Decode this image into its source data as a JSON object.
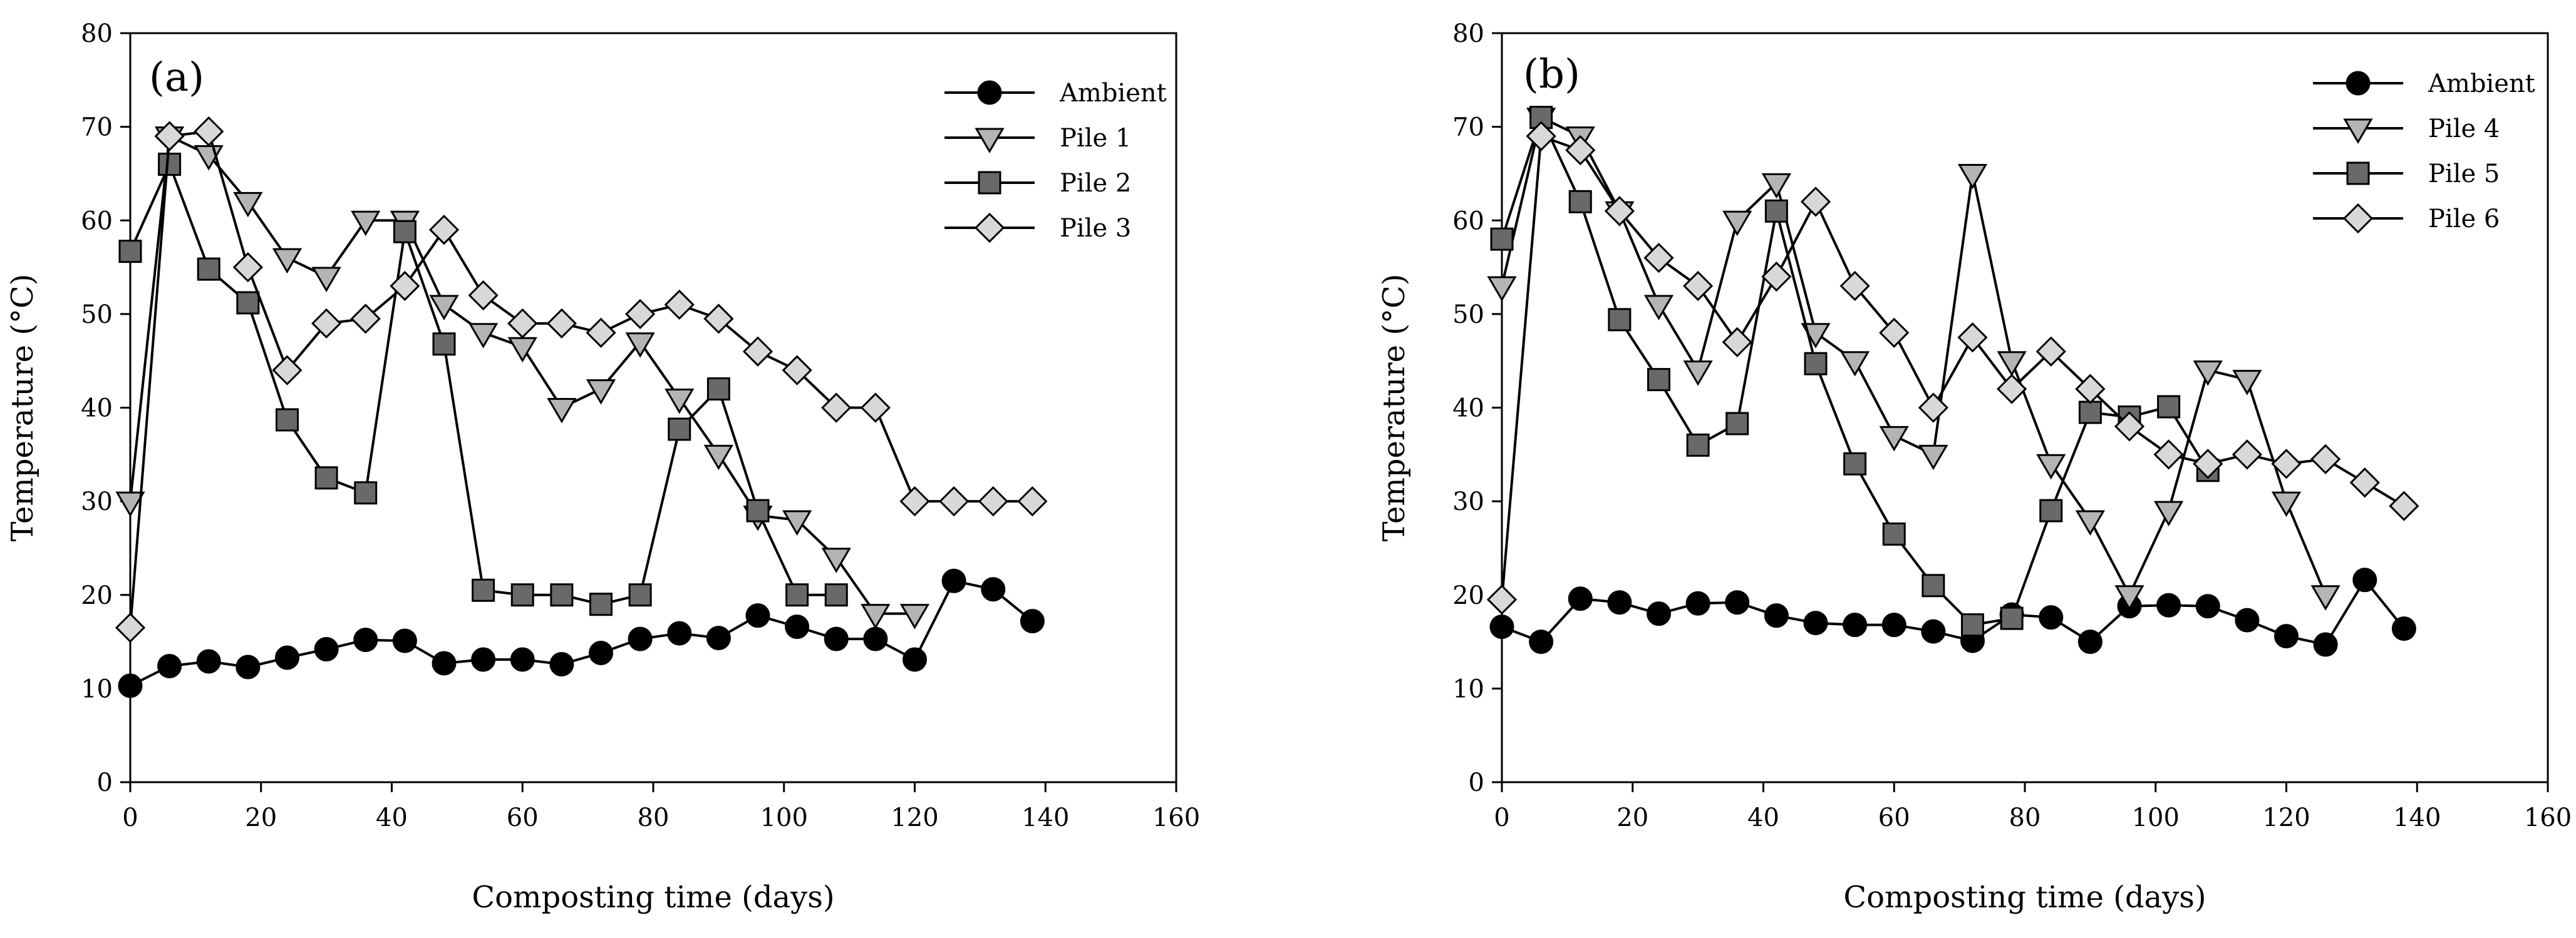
{
  "chart_data": [
    {
      "type": "line",
      "panel_label": "(a)",
      "xlabel": "Composting time (days)",
      "ylabel": "Temperature (°C)",
      "xlim": [
        0,
        160
      ],
      "ylim": [
        0,
        80
      ],
      "xticks": [
        0,
        20,
        40,
        60,
        80,
        100,
        120,
        140,
        160
      ],
      "yticks": [
        0,
        10,
        20,
        30,
        40,
        50,
        60,
        70,
        80
      ],
      "legend_position": "top-right",
      "series": [
        {
          "name": "Ambient",
          "marker": "circle",
          "fill": "#000000",
          "x": [
            0,
            6,
            12,
            18,
            24,
            30,
            36,
            42,
            48,
            54,
            60,
            66,
            72,
            78,
            84,
            90,
            96,
            102,
            108,
            114,
            120,
            126,
            132,
            138
          ],
          "y": [
            10.3,
            12.4,
            12.9,
            12.3,
            13.3,
            14.2,
            15.2,
            15.1,
            12.7,
            13.1,
            13.1,
            12.6,
            13.8,
            15.3,
            15.9,
            15.4,
            17.8,
            16.6,
            15.3,
            15.3,
            13.1,
            21.5,
            20.6,
            17.2
          ]
        },
        {
          "name": "Pile 1",
          "marker": "triangle-down",
          "fill": "#b4b4b4",
          "x": [
            0,
            6,
            12,
            18,
            24,
            30,
            36,
            42,
            48,
            54,
            60,
            66,
            72,
            78,
            84,
            90,
            96,
            102,
            108,
            114,
            120
          ],
          "y": [
            30,
            69,
            67,
            62,
            56,
            54,
            60,
            60,
            51,
            48,
            46.5,
            40,
            42,
            47,
            41,
            35,
            28.5,
            28,
            24,
            18,
            18
          ]
        },
        {
          "name": "Pile 2",
          "marker": "square",
          "fill": "#696969",
          "x": [
            0,
            6,
            12,
            18,
            24,
            30,
            36,
            42,
            48,
            54,
            60,
            66,
            72,
            78,
            84,
            90,
            96,
            102,
            108
          ],
          "y": [
            56.7,
            66,
            54.8,
            51.2,
            38.7,
            32.5,
            30.9,
            58.8,
            46.8,
            20.5,
            20,
            20,
            19,
            20,
            37.7,
            42,
            29,
            20,
            20
          ]
        },
        {
          "name": "Pile 3",
          "marker": "diamond",
          "fill": "#d8d8d8",
          "x": [
            0,
            6,
            12,
            18,
            24,
            30,
            36,
            42,
            48,
            54,
            60,
            66,
            72,
            78,
            84,
            90,
            96,
            102,
            108,
            114,
            120,
            126,
            132,
            138
          ],
          "y": [
            16.5,
            69,
            69.5,
            55,
            44,
            49,
            49.5,
            53,
            59,
            52,
            49,
            49,
            48,
            50,
            51,
            49.5,
            46,
            44,
            40,
            40,
            30,
            30,
            30,
            30
          ]
        }
      ]
    },
    {
      "type": "line",
      "panel_label": "(b)",
      "xlabel": "Composting time (days)",
      "ylabel": "Temperature (°C)",
      "xlim": [
        0,
        160
      ],
      "ylim": [
        0,
        80
      ],
      "xticks": [
        0,
        20,
        40,
        60,
        80,
        100,
        120,
        140,
        160
      ],
      "yticks": [
        0,
        10,
        20,
        30,
        40,
        50,
        60,
        70,
        80
      ],
      "legend_position": "top-right",
      "series": [
        {
          "name": "Ambient",
          "marker": "circle",
          "fill": "#000000",
          "x": [
            0,
            6,
            12,
            18,
            24,
            30,
            36,
            42,
            48,
            54,
            60,
            66,
            72,
            78,
            84,
            90,
            96,
            102,
            108,
            114,
            120,
            126,
            132,
            138
          ],
          "y": [
            16.6,
            15,
            19.6,
            19.2,
            18,
            19.1,
            19.2,
            17.8,
            17,
            16.8,
            16.8,
            16.1,
            15.1,
            17.9,
            17.6,
            15,
            18.8,
            18.9,
            18.8,
            17.3,
            15.6,
            14.7,
            21.6,
            16.4
          ]
        },
        {
          "name": "Pile 4",
          "marker": "triangle-down",
          "fill": "#b4b4b4",
          "x": [
            0,
            6,
            12,
            18,
            24,
            30,
            36,
            42,
            48,
            54,
            60,
            66,
            72,
            78,
            84,
            90,
            96,
            102,
            108,
            114,
            120,
            126
          ],
          "y": [
            53,
            71,
            69,
            61,
            51,
            44,
            60,
            64,
            48,
            45,
            37,
            35,
            65,
            45,
            34,
            28,
            20,
            29,
            44,
            43,
            30,
            20
          ]
        },
        {
          "name": "Pile 5",
          "marker": "square",
          "fill": "#696969",
          "x": [
            0,
            6,
            12,
            18,
            24,
            30,
            36,
            42,
            48,
            54,
            60,
            66,
            72,
            78,
            84,
            90,
            96,
            102,
            108
          ],
          "y": [
            58,
            71,
            62,
            49.4,
            43,
            36,
            38.3,
            61,
            44.7,
            34,
            26.5,
            21,
            16.8,
            17.5,
            29,
            39.5,
            39,
            40.1,
            33.3
          ]
        },
        {
          "name": "Pile 6",
          "marker": "diamond",
          "fill": "#d8d8d8",
          "x": [
            0,
            6,
            12,
            18,
            24,
            30,
            36,
            42,
            48,
            54,
            60,
            66,
            72,
            78,
            84,
            90,
            96,
            102,
            108,
            114,
            120,
            126,
            132,
            138
          ],
          "y": [
            19.5,
            69,
            67.5,
            61,
            56,
            53,
            47,
            54,
            62,
            53,
            48,
            40,
            47.5,
            42,
            46,
            42,
            38,
            35,
            34,
            35,
            34,
            34.5,
            32,
            29.5
          ]
        }
      ]
    }
  ]
}
